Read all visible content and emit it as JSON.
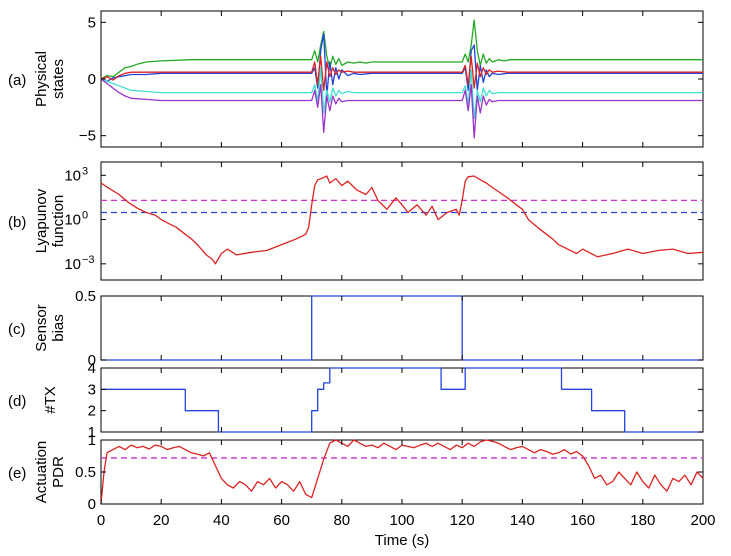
{
  "chart_data": [
    {
      "type": "line",
      "panel_label": "(a)",
      "ylabel": [
        "Physical",
        "states"
      ],
      "xlim": [
        0,
        200
      ],
      "ylim": [
        -6,
        6
      ],
      "yticks": [
        {
          "v": -5,
          "label": "−5"
        },
        {
          "v": 0,
          "label": "0"
        },
        {
          "v": 5,
          "label": "5"
        }
      ],
      "series": [
        {
          "color": "#22aa22",
          "x": [
            0,
            2,
            4,
            6,
            8,
            10,
            12,
            15,
            20,
            30,
            40,
            50,
            60,
            68,
            70,
            71,
            72,
            73,
            74,
            75,
            76,
            77,
            78,
            79,
            80,
            82,
            84,
            86,
            88,
            90,
            95,
            100,
            110,
            118,
            120,
            121,
            122,
            123,
            124,
            125,
            126,
            127,
            128,
            129,
            130,
            132,
            134,
            136,
            140,
            150,
            160,
            180,
            200
          ],
          "y": [
            0,
            0.3,
            0.2,
            0.6,
            1.0,
            1.1,
            1.3,
            1.5,
            1.6,
            1.7,
            1.7,
            1.7,
            1.7,
            1.7,
            1.7,
            2.5,
            1.5,
            3.0,
            4.2,
            2.0,
            1.0,
            2.0,
            1.3,
            1.8,
            1.2,
            1.5,
            1.4,
            1.5,
            1.4,
            1.5,
            1.5,
            1.5,
            1.5,
            1.5,
            1.5,
            2.2,
            1.5,
            3.0,
            5.2,
            2.5,
            1.2,
            2.2,
            1.4,
            1.8,
            1.5,
            1.7,
            1.6,
            1.7,
            1.7,
            1.7,
            1.7,
            1.7,
            1.7
          ]
        },
        {
          "color": "#2244dd",
          "x": [
            0,
            2,
            4,
            6,
            8,
            10,
            15,
            20,
            40,
            60,
            70,
            71,
            72,
            73,
            74,
            75,
            76,
            77,
            78,
            79,
            80,
            82,
            84,
            86,
            90,
            100,
            110,
            120,
            121,
            122,
            123,
            124,
            125,
            126,
            127,
            128,
            129,
            130,
            132,
            135,
            140,
            160,
            180,
            200
          ],
          "y": [
            0,
            -0.2,
            0.1,
            0.2,
            0.3,
            0.4,
            0.4,
            0.5,
            0.5,
            0.5,
            0.5,
            1.0,
            -0.8,
            2.5,
            4.0,
            -1.5,
            1.5,
            -0.5,
            1.0,
            0,
            0.8,
            0.3,
            0.5,
            0.4,
            0.5,
            0.5,
            0.5,
            0.5,
            1.0,
            -1.0,
            2.5,
            3.0,
            -1.0,
            1.2,
            -0.3,
            0.8,
            0.2,
            0.5,
            0.4,
            0.5,
            0.5,
            0.5,
            0.5,
            0.5
          ]
        },
        {
          "color": "#dd2222",
          "x": [
            0,
            2,
            4,
            6,
            8,
            10,
            15,
            20,
            40,
            60,
            70,
            71,
            72,
            73,
            74,
            75,
            76,
            77,
            78,
            79,
            80,
            82,
            84,
            86,
            90,
            100,
            110,
            120,
            121,
            122,
            123,
            124,
            125,
            126,
            127,
            128,
            129,
            130,
            132,
            135,
            140,
            160,
            180,
            200
          ],
          "y": [
            0,
            0.2,
            -0.1,
            0.3,
            0.5,
            0.6,
            0.6,
            0.6,
            0.6,
            0.6,
            0.6,
            1.5,
            -0.5,
            2.0,
            -1.0,
            1.5,
            0.2,
            1.0,
            0.4,
            0.8,
            0.6,
            0.7,
            0.6,
            0.6,
            0.6,
            0.6,
            0.6,
            0.6,
            1.2,
            -0.5,
            2.0,
            -0.8,
            1.4,
            0.2,
            1.0,
            0.4,
            0.8,
            0.6,
            0.7,
            0.6,
            0.6,
            0.6,
            0.6,
            0.6
          ]
        },
        {
          "color": "#40e0d0",
          "x": [
            0,
            2,
            4,
            6,
            8,
            10,
            15,
            20,
            40,
            60,
            70,
            71,
            72,
            73,
            74,
            75,
            76,
            77,
            78,
            79,
            80,
            82,
            84,
            86,
            90,
            100,
            110,
            120,
            121,
            122,
            123,
            124,
            125,
            126,
            127,
            128,
            129,
            130,
            132,
            135,
            140,
            160,
            180,
            200
          ],
          "y": [
            0,
            -0.2,
            -0.4,
            -0.6,
            -0.8,
            -1.0,
            -1.1,
            -1.2,
            -1.2,
            -1.2,
            -1.2,
            -0.5,
            -2.0,
            1.0,
            -3.0,
            -1.0,
            -2.0,
            -0.8,
            -1.5,
            -1.0,
            -1.3,
            -1.1,
            -1.2,
            -1.2,
            -1.2,
            -1.2,
            -1.2,
            -1.2,
            -0.6,
            -2.2,
            0.8,
            -3.5,
            -1.0,
            -2.0,
            -0.8,
            -1.5,
            -1.0,
            -1.3,
            -1.2,
            -1.2,
            -1.2,
            -1.2,
            -1.2,
            -1.2
          ]
        },
        {
          "color": "#9933cc",
          "x": [
            0,
            2,
            4,
            6,
            8,
            10,
            15,
            20,
            40,
            60,
            70,
            71,
            72,
            73,
            74,
            75,
            76,
            77,
            78,
            79,
            80,
            82,
            84,
            86,
            90,
            100,
            110,
            120,
            121,
            122,
            123,
            124,
            125,
            126,
            127,
            128,
            129,
            130,
            132,
            135,
            140,
            160,
            180,
            200
          ],
          "y": [
            0,
            -0.4,
            -0.8,
            -1.2,
            -1.5,
            -1.7,
            -1.8,
            -1.9,
            -1.9,
            -1.9,
            -1.9,
            -1.0,
            -2.5,
            -0.5,
            -4.7,
            -1.5,
            -2.8,
            -1.5,
            -2.2,
            -1.7,
            -2.0,
            -1.9,
            -1.9,
            -1.9,
            -1.9,
            -1.9,
            -1.9,
            -1.9,
            -1.0,
            -2.8,
            -0.5,
            -5.2,
            -1.5,
            -3.0,
            -1.5,
            -2.3,
            -1.8,
            -2.0,
            -1.9,
            -1.9,
            -1.9,
            -1.9,
            -1.9,
            -1.9
          ]
        }
      ]
    },
    {
      "type": "line",
      "panel_label": "(b)",
      "ylabel": [
        "Lyapunov",
        "function"
      ],
      "yscale": "log",
      "xlim": [
        0,
        200
      ],
      "ylim": [
        8e-05,
        8000
      ],
      "yticks": [
        {
          "v": 0.001,
          "label": "10",
          "sup": "−3"
        },
        {
          "v": 1,
          "label": "10",
          "sup": "0"
        },
        {
          "v": 1000,
          "label": "10",
          "sup": "3"
        }
      ],
      "hlines": [
        {
          "y": 20,
          "color": "#cc33cc",
          "dash": "6,4"
        },
        {
          "y": 3,
          "color": "#2244dd",
          "dash": "6,4"
        }
      ],
      "series": [
        {
          "color": "#dd2222",
          "x": [
            0,
            3,
            6,
            9,
            12,
            15,
            18,
            20,
            22,
            25,
            28,
            30,
            32,
            35,
            37,
            38,
            40,
            42,
            45,
            50,
            55,
            60,
            65,
            68,
            69,
            70,
            71,
            72,
            74,
            75,
            76,
            78,
            80,
            82,
            85,
            88,
            90,
            92,
            95,
            98,
            100,
            102,
            105,
            108,
            110,
            112,
            115,
            118,
            119,
            120,
            121,
            122,
            124,
            126,
            128,
            130,
            132,
            135,
            138,
            140,
            142,
            145,
            148,
            150,
            152,
            155,
            158,
            160,
            165,
            170,
            175,
            180,
            185,
            190,
            195,
            200
          ],
          "y": [
            300,
            120,
            50,
            15,
            6,
            3,
            2,
            1,
            0.6,
            0.3,
            0.1,
            0.05,
            0.02,
            0.004,
            0.002,
            0.001,
            0.005,
            0.01,
            0.004,
            0.006,
            0.008,
            0.02,
            0.05,
            0.1,
            0.3,
            10,
            200,
            500,
            700,
            900,
            300,
            600,
            200,
            400,
            100,
            50,
            150,
            20,
            5,
            30,
            10,
            3,
            10,
            2,
            8,
            1,
            3,
            5,
            2,
            20,
            400,
            800,
            900,
            500,
            300,
            150,
            80,
            30,
            10,
            5,
            1,
            0.3,
            0.1,
            0.05,
            0.02,
            0.01,
            0.005,
            0.01,
            0.003,
            0.005,
            0.01,
            0.005,
            0.008,
            0.01,
            0.005,
            0.006
          ]
        }
      ]
    },
    {
      "type": "line",
      "panel_label": "(c)",
      "ylabel": [
        "Sensor",
        "bias"
      ],
      "xlim": [
        0,
        200
      ],
      "ylim": [
        0,
        0.5
      ],
      "yticks": [
        {
          "v": 0,
          "label": "0"
        },
        {
          "v": 0.5,
          "label": "0.5"
        }
      ],
      "series": [
        {
          "color": "#2244dd",
          "x": [
            0,
            70,
            70,
            120,
            120,
            200
          ],
          "y": [
            0,
            0,
            0.5,
            0.5,
            0,
            0
          ]
        }
      ]
    },
    {
      "type": "line",
      "panel_label": "(d)",
      "ylabel": [
        "#TX"
      ],
      "xlim": [
        0,
        200
      ],
      "ylim": [
        1,
        4
      ],
      "yticks": [
        {
          "v": 1,
          "label": "1"
        },
        {
          "v": 2,
          "label": "2"
        },
        {
          "v": 3,
          "label": "3"
        },
        {
          "v": 4,
          "label": "4"
        }
      ],
      "series": [
        {
          "color": "#2244dd",
          "x": [
            0,
            28,
            28,
            39,
            39,
            70,
            70,
            72,
            72,
            74,
            74,
            76,
            76,
            113,
            113,
            121,
            121,
            153,
            153,
            163,
            163,
            174,
            174,
            200
          ],
          "y": [
            3,
            3,
            2,
            2,
            1,
            1,
            2,
            2,
            3,
            3,
            3.3,
            3.3,
            4,
            4,
            3,
            3,
            4,
            4,
            3,
            3,
            2,
            2,
            1,
            1
          ]
        }
      ]
    },
    {
      "type": "line",
      "panel_label": "(e)",
      "ylabel": [
        "Actuation",
        "PDR"
      ],
      "xlim": [
        0,
        200
      ],
      "ylim": [
        0,
        1
      ],
      "xticks": [
        0,
        20,
        40,
        60,
        80,
        100,
        120,
        140,
        160,
        180,
        200
      ],
      "xlabel": "Time (s)",
      "yticks": [
        {
          "v": 0,
          "label": "0"
        },
        {
          "v": 0.5,
          "label": "0.5"
        },
        {
          "v": 1,
          "label": "1"
        }
      ],
      "hlines": [
        {
          "y": 0.72,
          "color": "#cc33cc",
          "dash": "6,4"
        }
      ],
      "series": [
        {
          "color": "#dd2222",
          "x": [
            0,
            1,
            2,
            4,
            6,
            8,
            10,
            12,
            14,
            16,
            18,
            20,
            22,
            24,
            26,
            28,
            30,
            32,
            34,
            36,
            38,
            40,
            42,
            44,
            46,
            48,
            50,
            52,
            54,
            56,
            58,
            60,
            62,
            64,
            66,
            68,
            70,
            72,
            74,
            76,
            78,
            80,
            82,
            84,
            86,
            88,
            90,
            92,
            94,
            96,
            98,
            100,
            102,
            104,
            106,
            108,
            110,
            112,
            114,
            116,
            118,
            120,
            122,
            124,
            126,
            128,
            130,
            132,
            134,
            136,
            138,
            140,
            142,
            144,
            146,
            148,
            150,
            152,
            154,
            156,
            158,
            160,
            162,
            164,
            166,
            168,
            170,
            172,
            174,
            176,
            178,
            180,
            182,
            184,
            186,
            188,
            190,
            192,
            194,
            196,
            198,
            200
          ],
          "y": [
            0,
            0.5,
            0.8,
            0.85,
            0.9,
            0.85,
            0.92,
            0.88,
            0.9,
            0.86,
            0.92,
            0.9,
            0.85,
            0.88,
            0.9,
            0.85,
            0.8,
            0.78,
            0.75,
            0.8,
            0.6,
            0.4,
            0.3,
            0.25,
            0.35,
            0.3,
            0.2,
            0.35,
            0.3,
            0.4,
            0.25,
            0.35,
            0.3,
            0.2,
            0.35,
            0.15,
            0.1,
            0.4,
            0.7,
            0.95,
            1.0,
            0.95,
            0.9,
            1.0,
            0.95,
            0.9,
            0.92,
            0.88,
            0.95,
            0.9,
            0.85,
            0.92,
            0.9,
            0.88,
            0.92,
            0.95,
            0.9,
            0.95,
            0.9,
            0.85,
            0.92,
            0.88,
            0.95,
            0.9,
            0.97,
            1.0,
            0.98,
            0.95,
            0.9,
            0.85,
            0.88,
            0.9,
            0.85,
            0.8,
            0.85,
            0.82,
            0.78,
            0.8,
            0.85,
            0.78,
            0.82,
            0.75,
            0.6,
            0.4,
            0.45,
            0.3,
            0.35,
            0.5,
            0.4,
            0.3,
            0.5,
            0.35,
            0.25,
            0.45,
            0.3,
            0.2,
            0.4,
            0.35,
            0.45,
            0.3,
            0.5,
            0.4
          ]
        }
      ]
    }
  ]
}
